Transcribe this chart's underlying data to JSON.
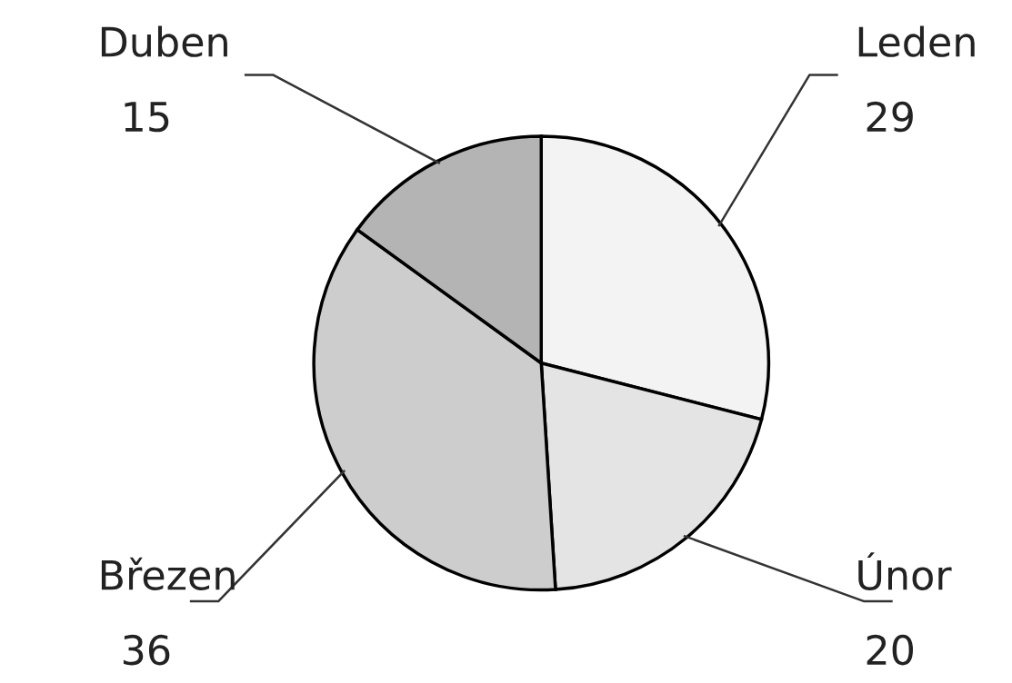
{
  "chart_data": {
    "type": "pie",
    "categories": [
      "Leden",
      "Únor",
      "Březen",
      "Duben"
    ],
    "values": [
      29,
      20,
      36,
      15
    ],
    "colors": [
      "#f3f3f3",
      "#e4e4e4",
      "#cdcdcd",
      "#b4b4b4"
    ],
    "data_labels": true
  }
}
